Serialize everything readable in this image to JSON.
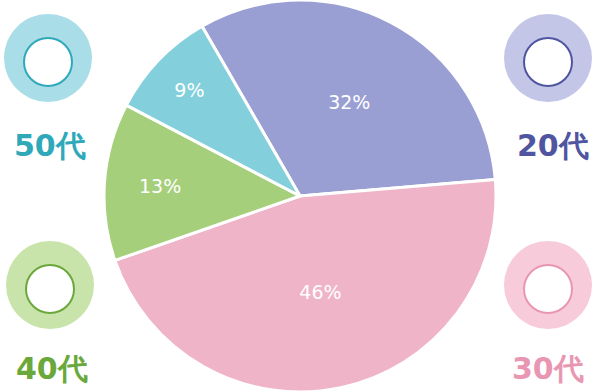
{
  "chart_data": {
    "type": "pie",
    "categories": [
      "20代",
      "30代",
      "40代",
      "50代"
    ],
    "values": [
      32,
      46,
      13,
      9
    ],
    "value_labels": [
      "32%",
      "46%",
      "13%",
      "9%"
    ],
    "colors": [
      "#9a9fd3",
      "#f0b4c9",
      "#a6cf7b",
      "#83cfdc"
    ],
    "data_labels": true
  }
}
